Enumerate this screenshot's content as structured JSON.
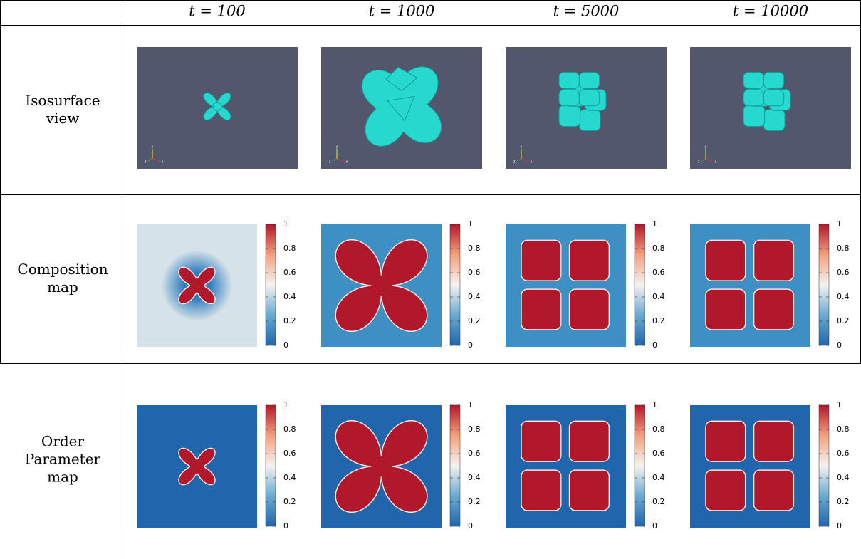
{
  "header": {
    "columns": [
      "t = 100",
      "t = 1000",
      "t = 5000",
      "t = 10000"
    ]
  },
  "rows": [
    {
      "label": [
        "Isosurface",
        "view"
      ]
    },
    {
      "label": [
        "Composition",
        "map"
      ]
    },
    {
      "label": [
        "Order",
        "Parameter",
        "map"
      ]
    }
  ],
  "colorbar": {
    "ticks": [
      "1",
      "0.8",
      "0.6",
      "0.4",
      "0.2",
      "0"
    ]
  },
  "axes_glyph": {
    "labels": [
      "y",
      "z",
      "x"
    ]
  }
}
